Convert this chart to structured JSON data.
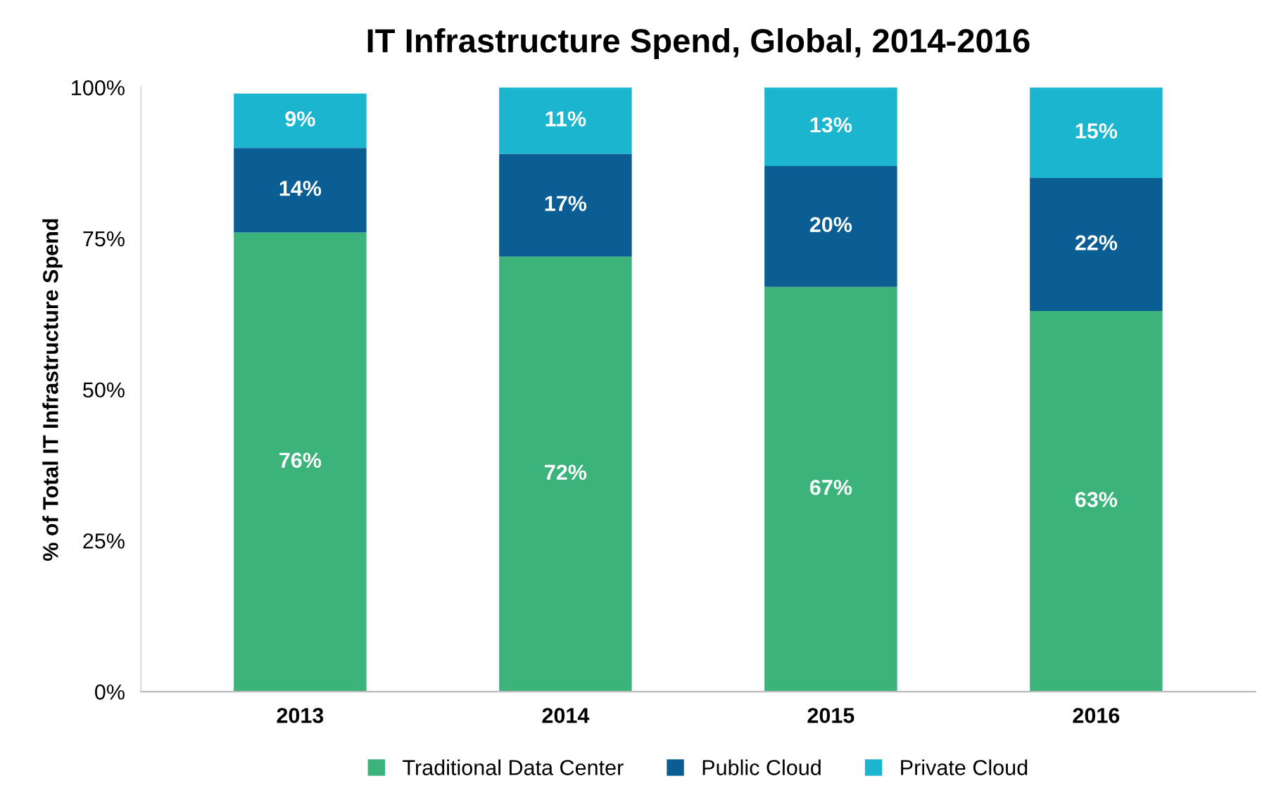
{
  "chart_data": {
    "type": "bar",
    "title": "IT Infrastructure Spend, Global, 2014-2016",
    "ylabel": "% of Total IT Infrastructure Spend",
    "categories": [
      "2013",
      "2014",
      "2015",
      "2016"
    ],
    "stacked": true,
    "series": [
      {
        "name": "Traditional Data Center",
        "color": "#3bb37a",
        "values": [
          76,
          72,
          67,
          63
        ],
        "value_labels": [
          "76%",
          "72%",
          "67%",
          "63%"
        ]
      },
      {
        "name": "Public Cloud",
        "color": "#0b5e94",
        "values": [
          14,
          17,
          20,
          22
        ],
        "value_labels": [
          "14%",
          "17%",
          "20%",
          "22%"
        ]
      },
      {
        "name": "Private Cloud",
        "color": "#1cb5d0",
        "values": [
          9,
          11,
          13,
          15
        ],
        "value_labels": [
          "9%",
          "11%",
          "13%",
          "15%"
        ]
      }
    ],
    "ylim": [
      0,
      100
    ],
    "yticks": [
      {
        "value": 0,
        "label": "0%"
      },
      {
        "value": 25,
        "label": "25%"
      },
      {
        "value": 50,
        "label": "50%"
      },
      {
        "value": 75,
        "label": "75%"
      },
      {
        "value": 100,
        "label": "100%"
      }
    ],
    "grid": false,
    "legend": "bottom"
  }
}
